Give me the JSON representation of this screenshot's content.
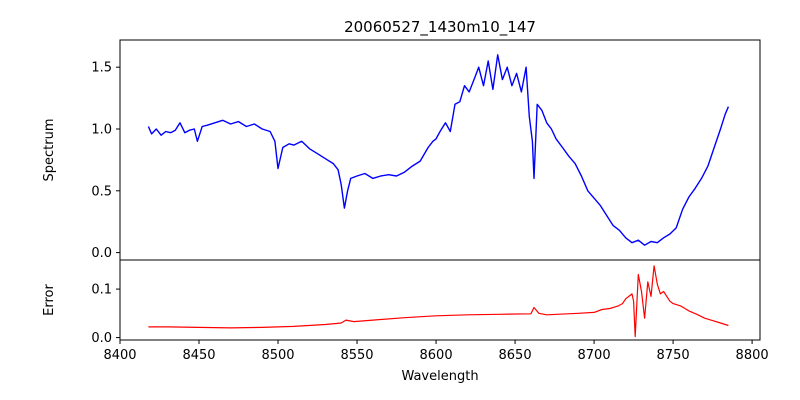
{
  "chart_data": {
    "type": "line",
    "title": "20060527_1430m10_147",
    "xlabel": "Wavelength",
    "xlim": [
      8400,
      8805
    ],
    "xticks": [
      "8400",
      "8450",
      "8500",
      "8550",
      "8600",
      "8650",
      "8700",
      "8750",
      "8800"
    ],
    "panels": [
      {
        "name": "spectrum",
        "ylabel": "Spectrum",
        "ylim": [
          -0.06,
          1.72
        ],
        "yticks": [
          "0.0",
          "0.5",
          "1.0",
          "1.5"
        ],
        "series": [
          {
            "name": "Spectrum",
            "color": "#0000ff",
            "x": [
              8418,
              8420,
              8423,
              8426,
              8429,
              8432,
              8435,
              8438,
              8441,
              8444,
              8447,
              8449,
              8452,
              8455,
              8460,
              8465,
              8470,
              8475,
              8480,
              8485,
              8490,
              8495,
              8498,
              8500,
              8503,
              8507,
              8510,
              8515,
              8520,
              8525,
              8530,
              8535,
              8538,
              8540,
              8542,
              8544,
              8546,
              8550,
              8555,
              8560,
              8565,
              8570,
              8575,
              8580,
              8585,
              8590,
              8595,
              8598,
              8600,
              8603,
              8606,
              8609,
              8612,
              8615,
              8618,
              8621,
              8624,
              8627,
              8630,
              8633,
              8636,
              8639,
              8642,
              8645,
              8648,
              8651,
              8654,
              8657,
              8659,
              8661,
              8662,
              8664,
              8667,
              8670,
              8673,
              8676,
              8680,
              8684,
              8688,
              8692,
              8696,
              8700,
              8704,
              8708,
              8712,
              8716,
              8720,
              8724,
              8728,
              8732,
              8736,
              8740,
              8744,
              8748,
              8752,
              8756,
              8760,
              8764,
              8768,
              8772,
              8776,
              8780,
              8783,
              8785
            ],
            "y": [
              1.02,
              0.96,
              1.0,
              0.95,
              0.98,
              0.97,
              0.99,
              1.05,
              0.97,
              0.99,
              1.0,
              0.9,
              1.02,
              1.03,
              1.05,
              1.07,
              1.04,
              1.06,
              1.02,
              1.04,
              1.0,
              0.98,
              0.9,
              0.68,
              0.85,
              0.88,
              0.87,
              0.9,
              0.84,
              0.8,
              0.76,
              0.72,
              0.67,
              0.55,
              0.36,
              0.5,
              0.6,
              0.62,
              0.64,
              0.6,
              0.62,
              0.63,
              0.62,
              0.65,
              0.7,
              0.74,
              0.85,
              0.9,
              0.92,
              0.99,
              1.05,
              0.98,
              1.2,
              1.22,
              1.35,
              1.3,
              1.4,
              1.5,
              1.35,
              1.55,
              1.32,
              1.6,
              1.4,
              1.5,
              1.35,
              1.45,
              1.3,
              1.5,
              1.1,
              0.9,
              0.6,
              1.2,
              1.15,
              1.05,
              1.0,
              0.92,
              0.85,
              0.78,
              0.72,
              0.62,
              0.5,
              0.44,
              0.38,
              0.3,
              0.22,
              0.18,
              0.12,
              0.08,
              0.1,
              0.06,
              0.09,
              0.08,
              0.12,
              0.15,
              0.2,
              0.35,
              0.45,
              0.52,
              0.6,
              0.7,
              0.85,
              1.0,
              1.12,
              1.18
            ]
          }
        ]
      },
      {
        "name": "error",
        "ylabel": "Error",
        "ylim": [
          -0.005,
          0.16
        ],
        "yticks": [
          "0.0",
          "0.1"
        ],
        "series": [
          {
            "name": "Error",
            "color": "#ff0000",
            "x": [
              8418,
              8430,
              8450,
              8470,
              8490,
              8510,
              8530,
              8540,
              8543,
              8548,
              8560,
              8580,
              8600,
              8620,
              8640,
              8660,
              8662,
              8665,
              8670,
              8690,
              8700,
              8705,
              8710,
              8715,
              8718,
              8720,
              8722,
              8724,
              8725,
              8726,
              8728,
              8730,
              8732,
              8734,
              8736,
              8738,
              8740,
              8742,
              8744,
              8746,
              8748,
              8750,
              8755,
              8760,
              8765,
              8770,
              8775,
              8780,
              8785
            ],
            "y": [
              0.022,
              0.022,
              0.021,
              0.02,
              0.021,
              0.023,
              0.027,
              0.03,
              0.036,
              0.033,
              0.036,
              0.041,
              0.045,
              0.047,
              0.048,
              0.049,
              0.062,
              0.05,
              0.047,
              0.05,
              0.052,
              0.058,
              0.06,
              0.065,
              0.07,
              0.08,
              0.085,
              0.09,
              0.075,
              0.002,
              0.13,
              0.095,
              0.04,
              0.115,
              0.085,
              0.148,
              0.11,
              0.09,
              0.095,
              0.085,
              0.075,
              0.07,
              0.065,
              0.055,
              0.048,
              0.04,
              0.035,
              0.03,
              0.025
            ]
          }
        ]
      }
    ]
  }
}
